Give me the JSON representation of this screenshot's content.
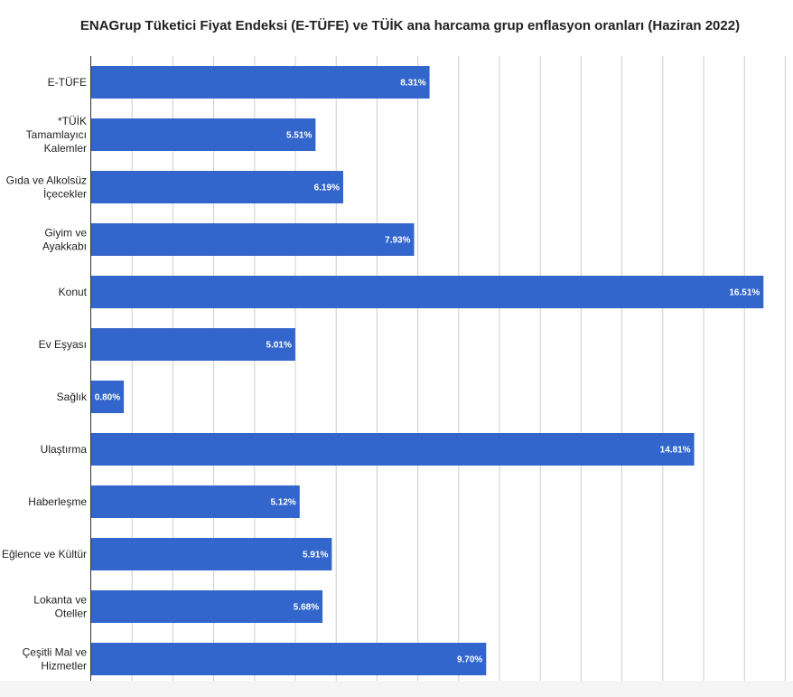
{
  "chart_data": {
    "type": "bar",
    "orientation": "horizontal",
    "title": "ENAGrup Tüketici Fiyat Endeksi (E-TÜFE) ve TÜİK ana harcama grup enflasyon oranları (Haziran 2022)",
    "xlabel": "",
    "ylabel": "",
    "grid": true,
    "legend": "none",
    "xlim": [
      0,
      16.6
    ],
    "bar_color": "#3366cc",
    "categories": [
      [
        "E-TÜFE"
      ],
      [
        "*TÜİK",
        "Tamamlayıcı",
        "Kalemler"
      ],
      [
        "Gıda ve Alkolsüz",
        "İçecekler"
      ],
      [
        "Giyim ve",
        "Ayakkabı"
      ],
      [
        "Konut"
      ],
      [
        "Ev Eşyası"
      ],
      [
        "Sağlık"
      ],
      [
        "Ulaştırma"
      ],
      [
        "Haberleşme"
      ],
      [
        "Eğlence ve Kültür"
      ],
      [
        "Lokanta ve",
        "Oteller"
      ],
      [
        "Çeşitli Mal ve",
        "Hizmetler"
      ]
    ],
    "values": [
      8.31,
      5.51,
      6.19,
      7.93,
      16.51,
      5.01,
      0.8,
      14.81,
      5.12,
      5.91,
      5.68,
      9.7
    ],
    "value_labels": [
      "8.31%",
      "5.51%",
      "6.19%",
      "7.93%",
      "16.51%",
      "5.01%",
      "0.80%",
      "14.81%",
      "5.12%",
      "5.91%",
      "5.68%",
      "9.70%"
    ]
  }
}
